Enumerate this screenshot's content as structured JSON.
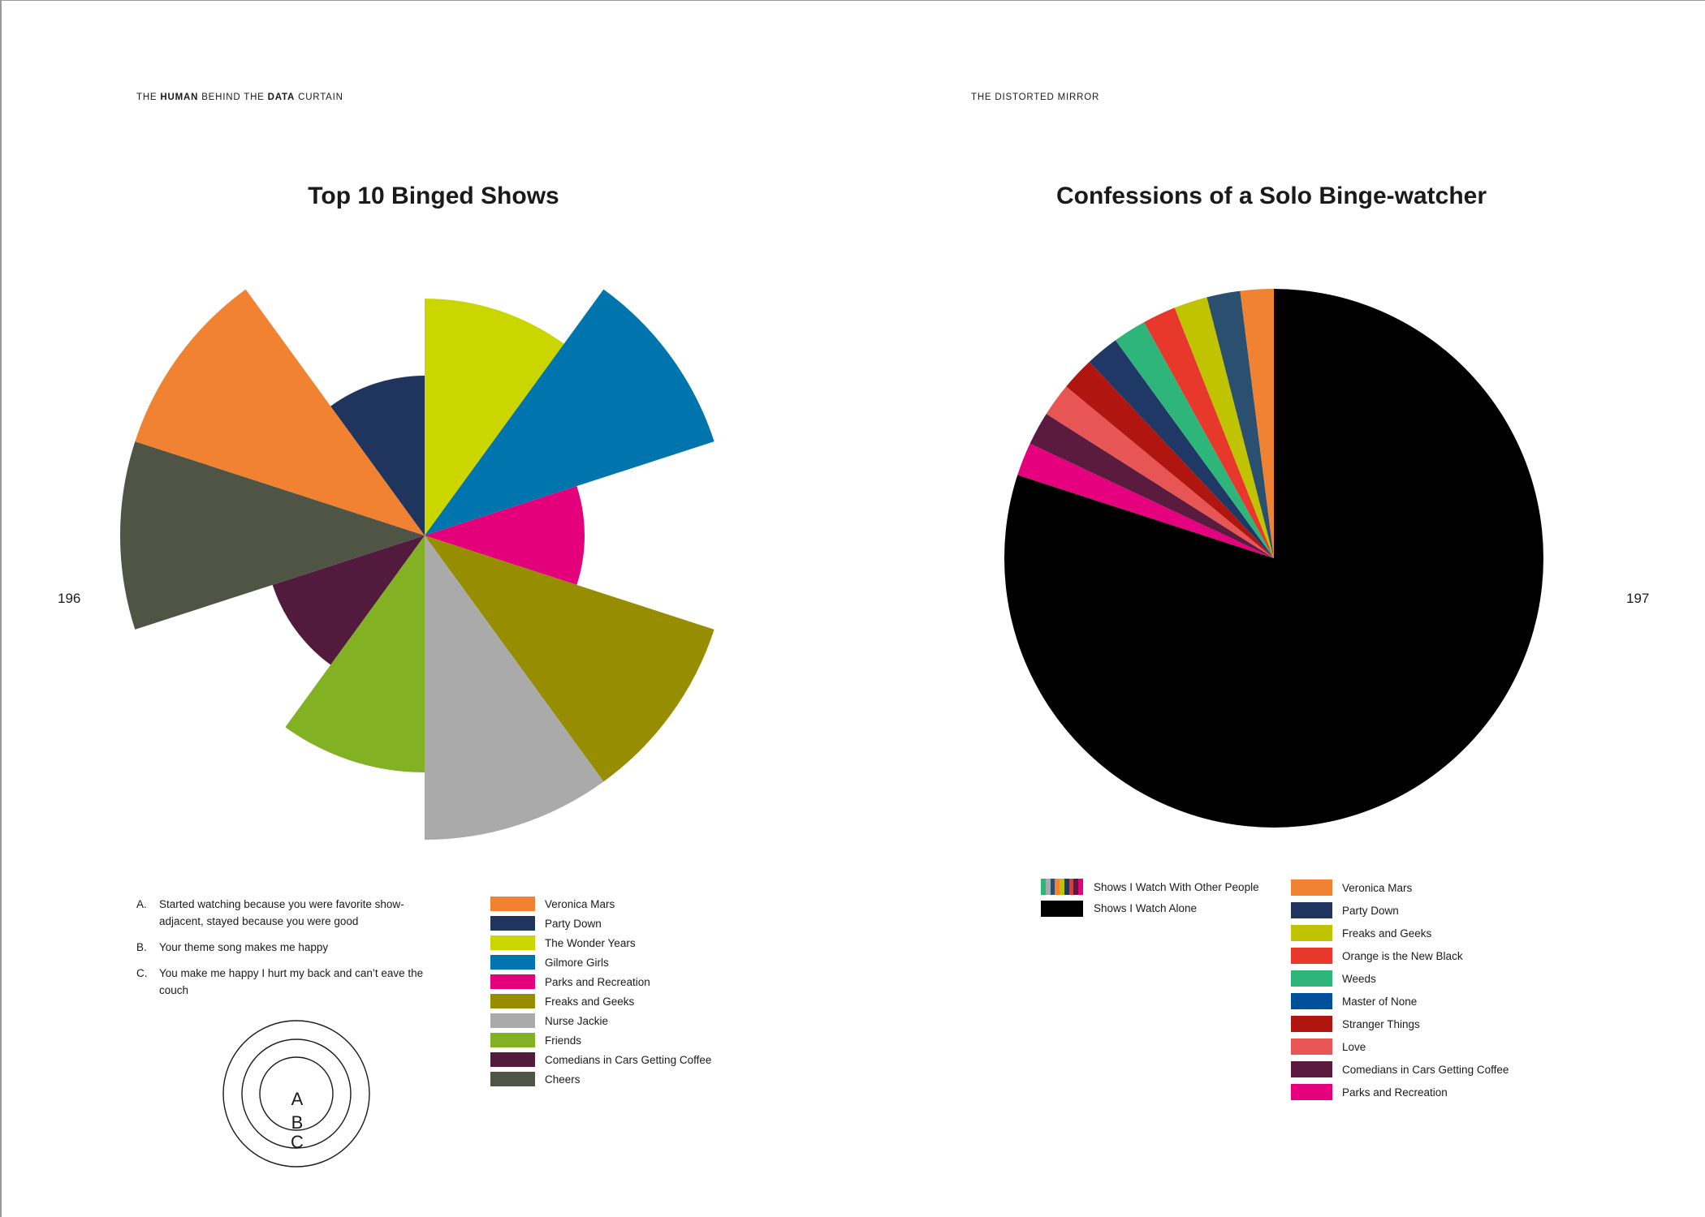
{
  "left_page": {
    "running_head": [
      {
        "text": "The ",
        "bold": false
      },
      {
        "text": "Human",
        "bold": true
      },
      {
        "text": " behind the ",
        "bold": false
      },
      {
        "text": "Data",
        "bold": true
      },
      {
        "text": " curtain",
        "bold": false
      }
    ],
    "page_number": "196",
    "notes": [
      {
        "key": "A.",
        "text": "Started watching because you were favorite show-adjacent, stayed because you were good"
      },
      {
        "key": "B.",
        "text": "Your theme song makes me happy"
      },
      {
        "key": "C.",
        "text": "You make me happy I hurt my back and can’t eave the couch"
      }
    ],
    "ring_labels": [
      "A",
      "B",
      "C"
    ]
  },
  "right_page": {
    "running_head": "The  Distorted Mirror",
    "page_number": "197"
  },
  "chart_data": [
    {
      "type": "polar-area",
      "title": "Top 10 Binged Shows",
      "scale": [
        "A",
        "B",
        "C"
      ],
      "categories": [
        "The Wonder Years",
        "Gilmore Girls",
        "Parks and Recreation",
        "Freaks and Geeks",
        "Nurse Jackie",
        "Friends",
        "Comedians in Cars Getting Coffee",
        "Cheers",
        "Veronica Mars",
        "Party Down"
      ],
      "values": [
        "B",
        "C",
        "A",
        "C",
        "C",
        "B",
        "A",
        "C",
        "C",
        "A"
      ],
      "colors": [
        "#cbd600",
        "#0074ad",
        "#e3007a",
        "#968e00",
        "#a9aaa9",
        "#82b124",
        "#521b3d",
        "#4f5445",
        "#f08231",
        "#1f355e"
      ],
      "legend": [
        {
          "label": "Veronica Mars",
          "color": "#f08231"
        },
        {
          "label": "Party Down",
          "color": "#1f355e"
        },
        {
          "label": "The Wonder Years",
          "color": "#cbd600"
        },
        {
          "label": "Gilmore Girls",
          "color": "#0074ad"
        },
        {
          "label": "Parks and Recreation",
          "color": "#e3007a"
        },
        {
          "label": "Freaks and Geeks",
          "color": "#968e00"
        },
        {
          "label": "Nurse Jackie",
          "color": "#a9aaa9"
        },
        {
          "label": "Friends",
          "color": "#82b124"
        },
        {
          "label": "Comedians in Cars Getting Coffee",
          "color": "#521b3d"
        },
        {
          "label": "Cheers",
          "color": "#4f5445"
        }
      ]
    },
    {
      "type": "pie",
      "title": "Confessions of a Solo Binge-watcher",
      "slices": [
        {
          "label": "Shows I Watch Alone",
          "value": 80,
          "color": "#000000"
        },
        {
          "label": "Parks and Recreation",
          "value": 2,
          "color": "#e5007d"
        },
        {
          "label": "Comedians in Cars Getting Coffee",
          "value": 2,
          "color": "#5a1b3e"
        },
        {
          "label": "Love",
          "value": 2,
          "color": "#e85555"
        },
        {
          "label": "Stranger Things",
          "value": 2,
          "color": "#b0150f"
        },
        {
          "label": "Master of None",
          "value": 2,
          "color": "#1f3865"
        },
        {
          "label": "Weeds",
          "value": 2,
          "color": "#2eb57a"
        },
        {
          "label": "Orange is the New Black",
          "value": 2,
          "color": "#e8382c"
        },
        {
          "label": "Freaks and Geeks",
          "value": 2,
          "color": "#bfc300"
        },
        {
          "label": "Party Down",
          "value": 2,
          "color": "#2b4f6e"
        },
        {
          "label": "Veronica Mars",
          "value": 2,
          "color": "#f08232"
        }
      ],
      "group_legend": [
        {
          "label": "Shows I Watch With Other People",
          "colors": [
            "#2eb57a",
            "#a9aaa9",
            "#2b4f6e",
            "#f08232",
            "#bfc300",
            "#1f3865",
            "#e8382c",
            "#5a1b3e",
            "#e5007d"
          ]
        },
        {
          "label": "Shows I Watch Alone",
          "color": "#000000"
        }
      ],
      "legend": [
        {
          "label": "Veronica Mars",
          "color": "#f08232"
        },
        {
          "label": "Party Down",
          "color": "#1f355e"
        },
        {
          "label": "Freaks and Geeks",
          "color": "#bfc300"
        },
        {
          "label": "Orange is the New Black",
          "color": "#e8382c"
        },
        {
          "label": "Weeds",
          "color": "#2eb57a"
        },
        {
          "label": "Master of None",
          "color": "#004f9a"
        },
        {
          "label": "Stranger Things",
          "color": "#b0150f"
        },
        {
          "label": "Love",
          "color": "#e85555"
        },
        {
          "label": "Comedians in Cars Getting Coffee",
          "color": "#5a1b3e"
        },
        {
          "label": "Parks and Recreation",
          "color": "#e5007d"
        }
      ]
    }
  ]
}
